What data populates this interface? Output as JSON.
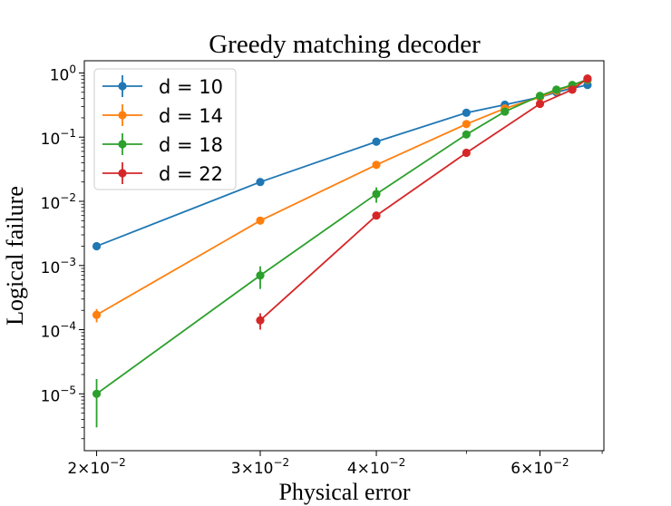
{
  "chart_data": {
    "type": "line",
    "title": "Greedy matching decoder",
    "xlabel": "Physical error",
    "ylabel": "Logical failure",
    "xscale": "log",
    "yscale": "log",
    "xlim": [
      0.0194,
      0.0703
    ],
    "ylim": [
      1.3e-06,
      1.55
    ],
    "legend_position": "top-left",
    "x_ticks": [
      {
        "value": 0.02,
        "mantissa": "2",
        "base": "10",
        "exp": "−2"
      },
      {
        "value": 0.03,
        "mantissa": "3",
        "base": "10",
        "exp": "−2"
      },
      {
        "value": 0.04,
        "mantissa": "4",
        "base": "10",
        "exp": "−2"
      },
      {
        "value": 0.06,
        "mantissa": "6",
        "base": "10",
        "exp": "−2"
      }
    ],
    "y_ticks": [
      {
        "value": 1,
        "base": "10",
        "exp": "0"
      },
      {
        "value": 0.1,
        "base": "10",
        "exp": "−1"
      },
      {
        "value": 0.01,
        "base": "10",
        "exp": "−2"
      },
      {
        "value": 0.001,
        "base": "10",
        "exp": "−3"
      },
      {
        "value": 0.0001,
        "base": "10",
        "exp": "−4"
      },
      {
        "value": 1e-05,
        "base": "10",
        "exp": "−5"
      }
    ],
    "series": [
      {
        "name": "d = 10",
        "color": "#1f77b4",
        "x": [
          0.02,
          0.03,
          0.04,
          0.05,
          0.055,
          0.06,
          0.0625,
          0.065,
          0.0675
        ],
        "y": [
          0.002,
          0.02,
          0.085,
          0.24,
          0.32,
          0.42,
          0.5,
          0.58,
          0.65
        ],
        "yerr": [
          0.0001,
          0.0008,
          0.002,
          0.004,
          0.005,
          0.006,
          0.006,
          0.006,
          0.006
        ]
      },
      {
        "name": "d = 14",
        "color": "#ff7f0e",
        "x": [
          0.02,
          0.03,
          0.04,
          0.05,
          0.055,
          0.06,
          0.0625,
          0.065,
          0.0675
        ],
        "y": [
          0.00017,
          0.005,
          0.037,
          0.16,
          0.28,
          0.42,
          0.53,
          0.63,
          0.78
        ],
        "yerr": [
          4e-05,
          0.0003,
          0.0015,
          0.004,
          0.005,
          0.006,
          0.006,
          0.006,
          0.006
        ]
      },
      {
        "name": "d = 18",
        "color": "#2ca02c",
        "x": [
          0.02,
          0.03,
          0.04,
          0.05,
          0.055,
          0.06,
          0.0625,
          0.065,
          0.0675
        ],
        "y": [
          1e-05,
          0.0007,
          0.013,
          0.11,
          0.25,
          0.44,
          0.55,
          0.65,
          0.79
        ],
        "yerr": [
          7e-06,
          0.00027,
          0.0035,
          0.005,
          0.006,
          0.006,
          0.006,
          0.006,
          0.006
        ]
      },
      {
        "name": "d = 22",
        "color": "#d62728",
        "x": [
          0.03,
          0.04,
          0.05,
          0.06,
          0.065,
          0.0675
        ],
        "y": [
          0.00014,
          0.006,
          0.057,
          0.33,
          0.55,
          0.82
        ],
        "yerr": [
          4e-05,
          0.0004,
          0.002,
          0.006,
          0.006,
          0.006
        ]
      }
    ]
  }
}
